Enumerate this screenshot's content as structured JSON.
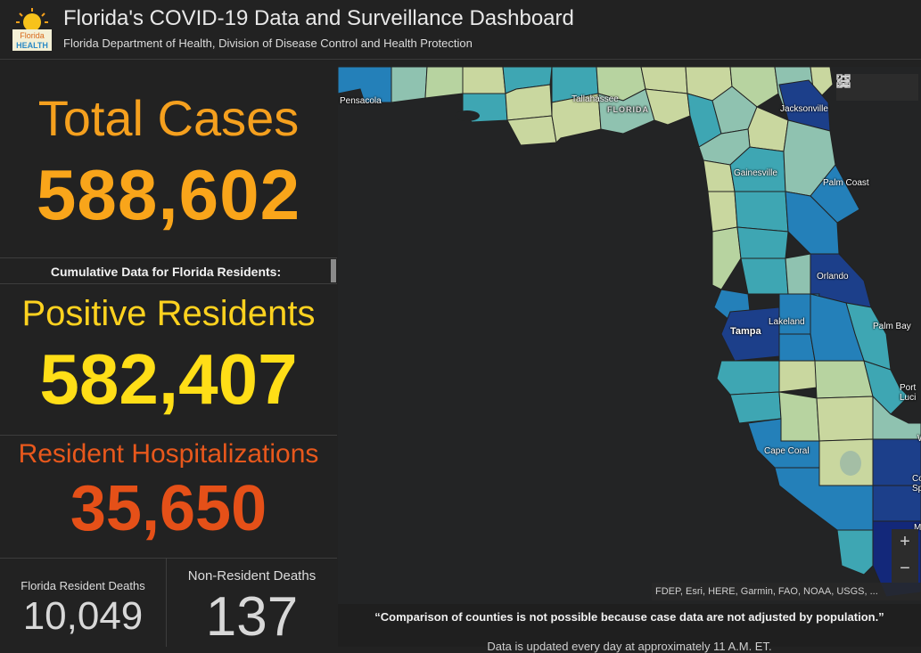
{
  "header": {
    "logo_text_top": "Florida",
    "logo_text_bottom": "HEALTH",
    "title": "Florida's COVID-19 Data and Surveillance Dashboard",
    "subtitle": "Florida Department of Health, Division of Disease Control and Health Protection"
  },
  "stats": {
    "total_cases_label": "Total Cases",
    "total_cases_value": "588,602",
    "cumulative_label": "Cumulative Data for Florida Residents:",
    "positive_label": "Positive Residents",
    "positive_value": "582,407",
    "hosp_label": "Resident Hospitalizations",
    "hosp_value": "35,650",
    "fl_deaths_label": "Florida Resident Deaths",
    "fl_deaths_value": "10,049",
    "nr_deaths_label": "Non-Resident Deaths",
    "nr_deaths_value": "137"
  },
  "map": {
    "labels": {
      "pensacola": "Pensacola",
      "tallahassee": "Tallahassee",
      "florida": "FLORIDA",
      "jacksonville": "Jacksonville",
      "gainesville": "Gainesville",
      "palm_coast": "Palm Coast",
      "orlando": "Orlando",
      "lakeland": "Lakeland",
      "tampa": "Tampa",
      "palm_bay": "Palm Bay",
      "port_st_lucie": "Port\nLuci",
      "cape_coral": "Cape Coral",
      "cut_w": "W",
      "cut_co": "Co\nSpr",
      "cut_m": "M"
    },
    "tools": [
      "home-icon",
      "list-icon",
      "grid-icon"
    ],
    "zoom_in": "+",
    "zoom_out": "−",
    "attribution": "FDEP, Esri, HERE, Garmin, FAO, NOAA, USGS, ...",
    "colors": {
      "light": "#c9d79f",
      "light2": "#b7d3a0",
      "mid": "#8fc2b0",
      "teal": "#3ea6b3",
      "blue": "#2480b9",
      "dark": "#1c3f8a",
      "darkest": "#13287a"
    }
  },
  "footer": {
    "note": "“Comparison of counties is not possible because case data are not adjusted by population.”",
    "updated": "Data is updated every day at approximately 11 A.M. ET."
  }
}
